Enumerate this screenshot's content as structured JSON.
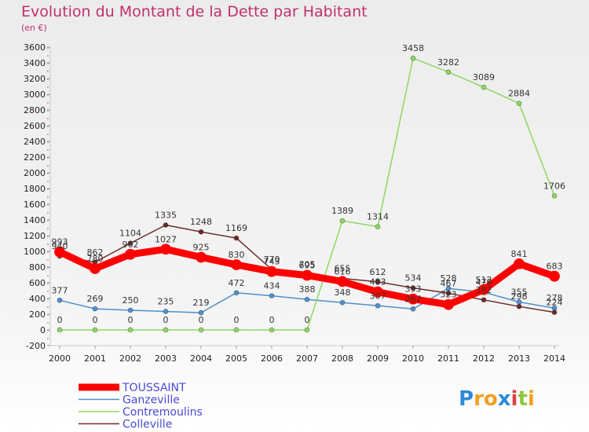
{
  "chart_data": {
    "type": "line",
    "title": "Evolution du Montant de la Dette par Habitant",
    "subtitle": "(en €)",
    "x": [
      "2000",
      "2001",
      "2002",
      "2003",
      "2004",
      "2005",
      "2006",
      "2007",
      "2008",
      "2009",
      "2010",
      "2011",
      "2012",
      "2013",
      "2014"
    ],
    "ylim": [
      -200,
      3600
    ],
    "yticks": [
      -200,
      0,
      200,
      400,
      600,
      800,
      1000,
      1200,
      1400,
      1600,
      1800,
      2000,
      2200,
      2400,
      2600,
      2800,
      3000,
      3200,
      3400,
      3600
    ],
    "grid": false,
    "legend_position": "bottom-left",
    "series": [
      {
        "name": "TOUSSAINT",
        "color": "#ff0000",
        "values": [
          993,
          780,
          962,
          1027,
          925,
          830,
          743,
          695,
          616,
          483,
          393,
          323,
          512,
          841,
          683
        ]
      },
      {
        "name": "Ganzeville",
        "color": "#4f90cc",
        "values": [
          377,
          269,
          250,
          235,
          219,
          472,
          434,
          388,
          348,
          307,
          267,
          528,
          479,
          355,
          278
        ]
      },
      {
        "name": "Contremoulins",
        "color": "#8ed860",
        "values": [
          0,
          0,
          0,
          0,
          0,
          0,
          0,
          0,
          1389,
          1314,
          3458,
          3282,
          3089,
          2884,
          1706
        ]
      },
      {
        "name": "Colleville",
        "color": "#6e2a2a",
        "values": [
          940,
          862,
          1104,
          1335,
          1248,
          1169,
          770,
          705,
          655,
          612,
          534,
          467,
          382,
          298,
          224
        ]
      }
    ]
  },
  "logo": {
    "text": "Proxiti",
    "letters": [
      "P",
      "r",
      "o",
      "x",
      "i",
      "t",
      "i"
    ],
    "colors": [
      "#2e8ad8",
      "#f0a020",
      "#f0a020",
      "#2e8ad8",
      "#e04040",
      "#8cc63f",
      "#f0a020"
    ]
  }
}
